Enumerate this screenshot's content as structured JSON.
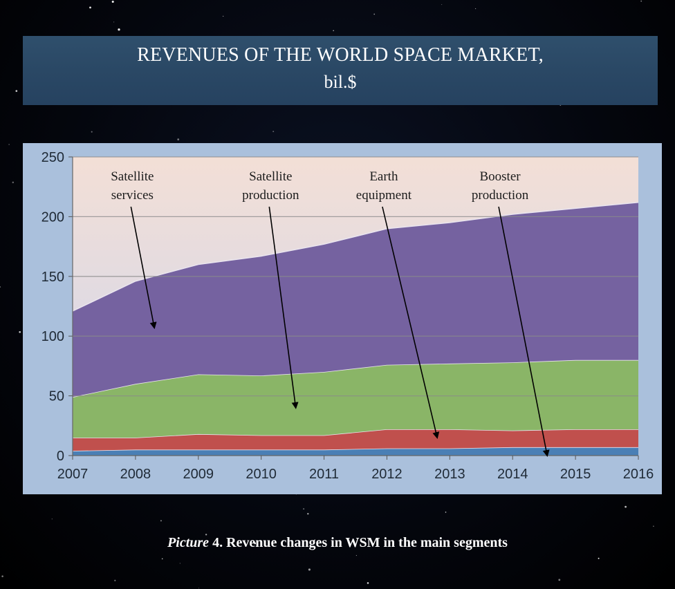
{
  "header": {
    "title_line1": "REVENUES OF THE WORLD SPACE MARKET,",
    "title_line2": "bil.$"
  },
  "caption": {
    "prefix": "Picture",
    "text": " 4. Revenue changes in WSM in the main segments"
  },
  "colors": {
    "satellite_services": "#7562a0",
    "satellite_production": "#8ab567",
    "earth_equipment": "#c0504d",
    "booster_production": "#4a7fb5",
    "plot_bg_top": "#f3dfd6",
    "plot_bg_bottom": "#ced6ee",
    "panel_bg": "#aac0dc"
  },
  "chart_data": {
    "type": "area",
    "stacked": true,
    "title": "REVENUES OF THE WORLD SPACE MARKET, bil.$",
    "x": [
      "2007",
      "2008",
      "2009",
      "2010",
      "2011",
      "2012",
      "2013",
      "2014",
      "2015",
      "2016"
    ],
    "ylim": [
      0,
      250
    ],
    "yticks": [
      "0",
      "50",
      "100",
      "150",
      "200",
      "250"
    ],
    "grid": true,
    "series": [
      {
        "name": "Booster production",
        "key": "booster_production",
        "values": [
          4,
          5,
          5,
          5,
          5,
          6,
          6,
          7,
          7,
          7
        ]
      },
      {
        "name": "Earth equipment",
        "key": "earth_equipment",
        "values": [
          11,
          10,
          13,
          12,
          12,
          16,
          16,
          14,
          15,
          15
        ]
      },
      {
        "name": "Satellite production",
        "key": "satellite_production",
        "values": [
          34,
          45,
          50,
          50,
          53,
          54,
          55,
          57,
          58,
          58
        ]
      },
      {
        "name": "Satellite services",
        "key": "satellite_services",
        "values": [
          72,
          86,
          92,
          100,
          107,
          114,
          118,
          124,
          127,
          132
        ]
      }
    ],
    "annotations": [
      {
        "line1": "Satellite",
        "line2": "services",
        "series": "satellite_services",
        "label_x": 2007.95,
        "target_x": 2008.3,
        "target_y": 107
      },
      {
        "line1": "Satellite",
        "line2": "production",
        "series": "satellite_production",
        "label_x": 2010.15,
        "target_x": 2010.55,
        "target_y": 40
      },
      {
        "line1": "Earth",
        "line2": "equipment",
        "series": "earth_equipment",
        "label_x": 2011.95,
        "target_x": 2012.8,
        "target_y": 15
      },
      {
        "line1": "Booster",
        "line2": "production",
        "series": "booster_production",
        "label_x": 2013.8,
        "target_x": 2014.55,
        "target_y": 0
      }
    ]
  }
}
